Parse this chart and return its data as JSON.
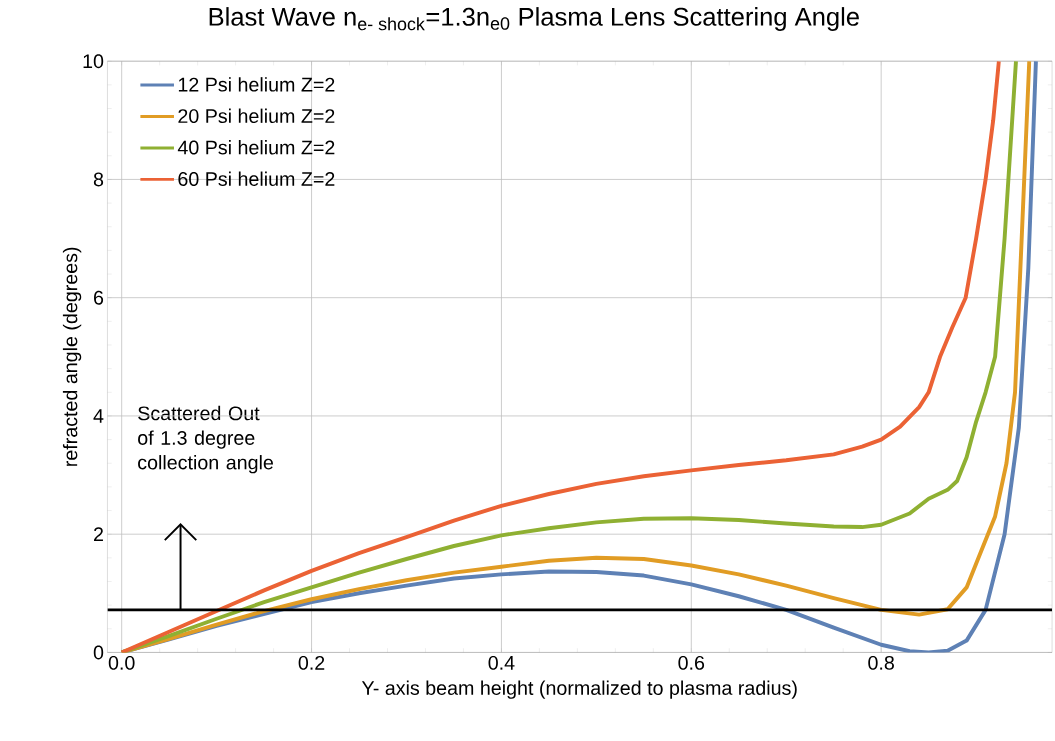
{
  "chart_data": {
    "type": "line",
    "title": "\\text{Blast Wave n}_{\\text{e- shock}}\\text{=1.3n}_{\\text{e0}}\\text{ Plasma Lens Scattering Angle}",
    "xlabel": "Y- axis beam height (normalized to plasma radius)",
    "ylabel": "refracted angle (degrees)",
    "xlim": [
      -0.015,
      0.98
    ],
    "ylim": [
      0,
      10
    ],
    "xticks": [
      {
        "value": 0,
        "label": "0.0"
      },
      {
        "value": 0.2,
        "label": "0.2"
      },
      {
        "value": 0.4,
        "label": "0.4"
      },
      {
        "value": 0.6,
        "label": "0.6"
      },
      {
        "value": 0.8,
        "label": "0.8"
      }
    ],
    "yticks": [
      0,
      2,
      4,
      6,
      8,
      10
    ],
    "grid": true,
    "legend": "top left",
    "ref_lines": [
      {
        "axis": "y",
        "value": 0.72,
        "color": "#000000"
      }
    ],
    "annotations": [
      "Scattered Out\nof 1.3 degree\ncollection angle"
    ],
    "series": [
      {
        "name": "12 Psi helium Z=2",
        "color": "#5e81b5",
        "x": [
          0,
          0.05,
          0.1,
          0.15,
          0.2,
          0.25,
          0.3,
          0.35,
          0.4,
          0.45,
          0.5,
          0.55,
          0.6,
          0.65,
          0.7,
          0.75,
          0.8,
          0.83,
          0.85,
          0.87,
          0.89,
          0.91,
          0.93,
          0.945,
          0.955,
          0.963
        ],
        "values": [
          0,
          0.22,
          0.45,
          0.65,
          0.85,
          1.0,
          1.13,
          1.25,
          1.32,
          1.37,
          1.36,
          1.3,
          1.15,
          0.95,
          0.72,
          0.42,
          0.13,
          0.02,
          0.0,
          0.03,
          0.2,
          0.72,
          2.0,
          3.8,
          6.5,
          10
        ]
      },
      {
        "name": "20 Psi helium Z=2",
        "color": "#e19c24",
        "x": [
          0,
          0.05,
          0.1,
          0.15,
          0.2,
          0.25,
          0.3,
          0.35,
          0.4,
          0.45,
          0.5,
          0.55,
          0.6,
          0.65,
          0.7,
          0.75,
          0.8,
          0.84,
          0.87,
          0.89,
          0.9,
          0.92,
          0.932,
          0.941,
          0.948,
          0.956
        ],
        "values": [
          0,
          0.23,
          0.47,
          0.7,
          0.9,
          1.07,
          1.22,
          1.35,
          1.45,
          1.55,
          1.6,
          1.58,
          1.47,
          1.32,
          1.13,
          0.92,
          0.72,
          0.64,
          0.73,
          1.1,
          1.5,
          2.3,
          3.2,
          4.4,
          7,
          10
        ]
      },
      {
        "name": "40 Psi helium Z=2",
        "color": "#8fb032",
        "x": [
          0,
          0.05,
          0.1,
          0.15,
          0.2,
          0.25,
          0.3,
          0.35,
          0.4,
          0.45,
          0.5,
          0.55,
          0.6,
          0.65,
          0.7,
          0.75,
          0.78,
          0.8,
          0.83,
          0.85,
          0.87,
          0.88,
          0.89,
          0.9,
          0.91,
          0.92,
          0.93,
          0.942
        ],
        "values": [
          0,
          0.28,
          0.57,
          0.85,
          1.1,
          1.35,
          1.58,
          1.8,
          1.98,
          2.1,
          2.2,
          2.26,
          2.27,
          2.24,
          2.18,
          2.13,
          2.12,
          2.16,
          2.35,
          2.6,
          2.75,
          2.9,
          3.3,
          3.9,
          4.4,
          5.0,
          7,
          10
        ]
      },
      {
        "name": "60 Psi helium Z=2",
        "color": "#eb6235",
        "x": [
          0,
          0.05,
          0.1,
          0.15,
          0.2,
          0.25,
          0.3,
          0.35,
          0.4,
          0.45,
          0.5,
          0.55,
          0.6,
          0.65,
          0.7,
          0.75,
          0.78,
          0.8,
          0.82,
          0.84,
          0.85,
          0.862,
          0.875,
          0.889,
          0.9,
          0.91,
          0.918,
          0.924
        ],
        "values": [
          0,
          0.35,
          0.7,
          1.05,
          1.38,
          1.68,
          1.95,
          2.23,
          2.48,
          2.68,
          2.85,
          2.98,
          3.08,
          3.17,
          3.25,
          3.35,
          3.48,
          3.6,
          3.82,
          4.15,
          4.4,
          5.0,
          5.5,
          6.0,
          7.0,
          8.0,
          9.0,
          10
        ]
      }
    ]
  }
}
